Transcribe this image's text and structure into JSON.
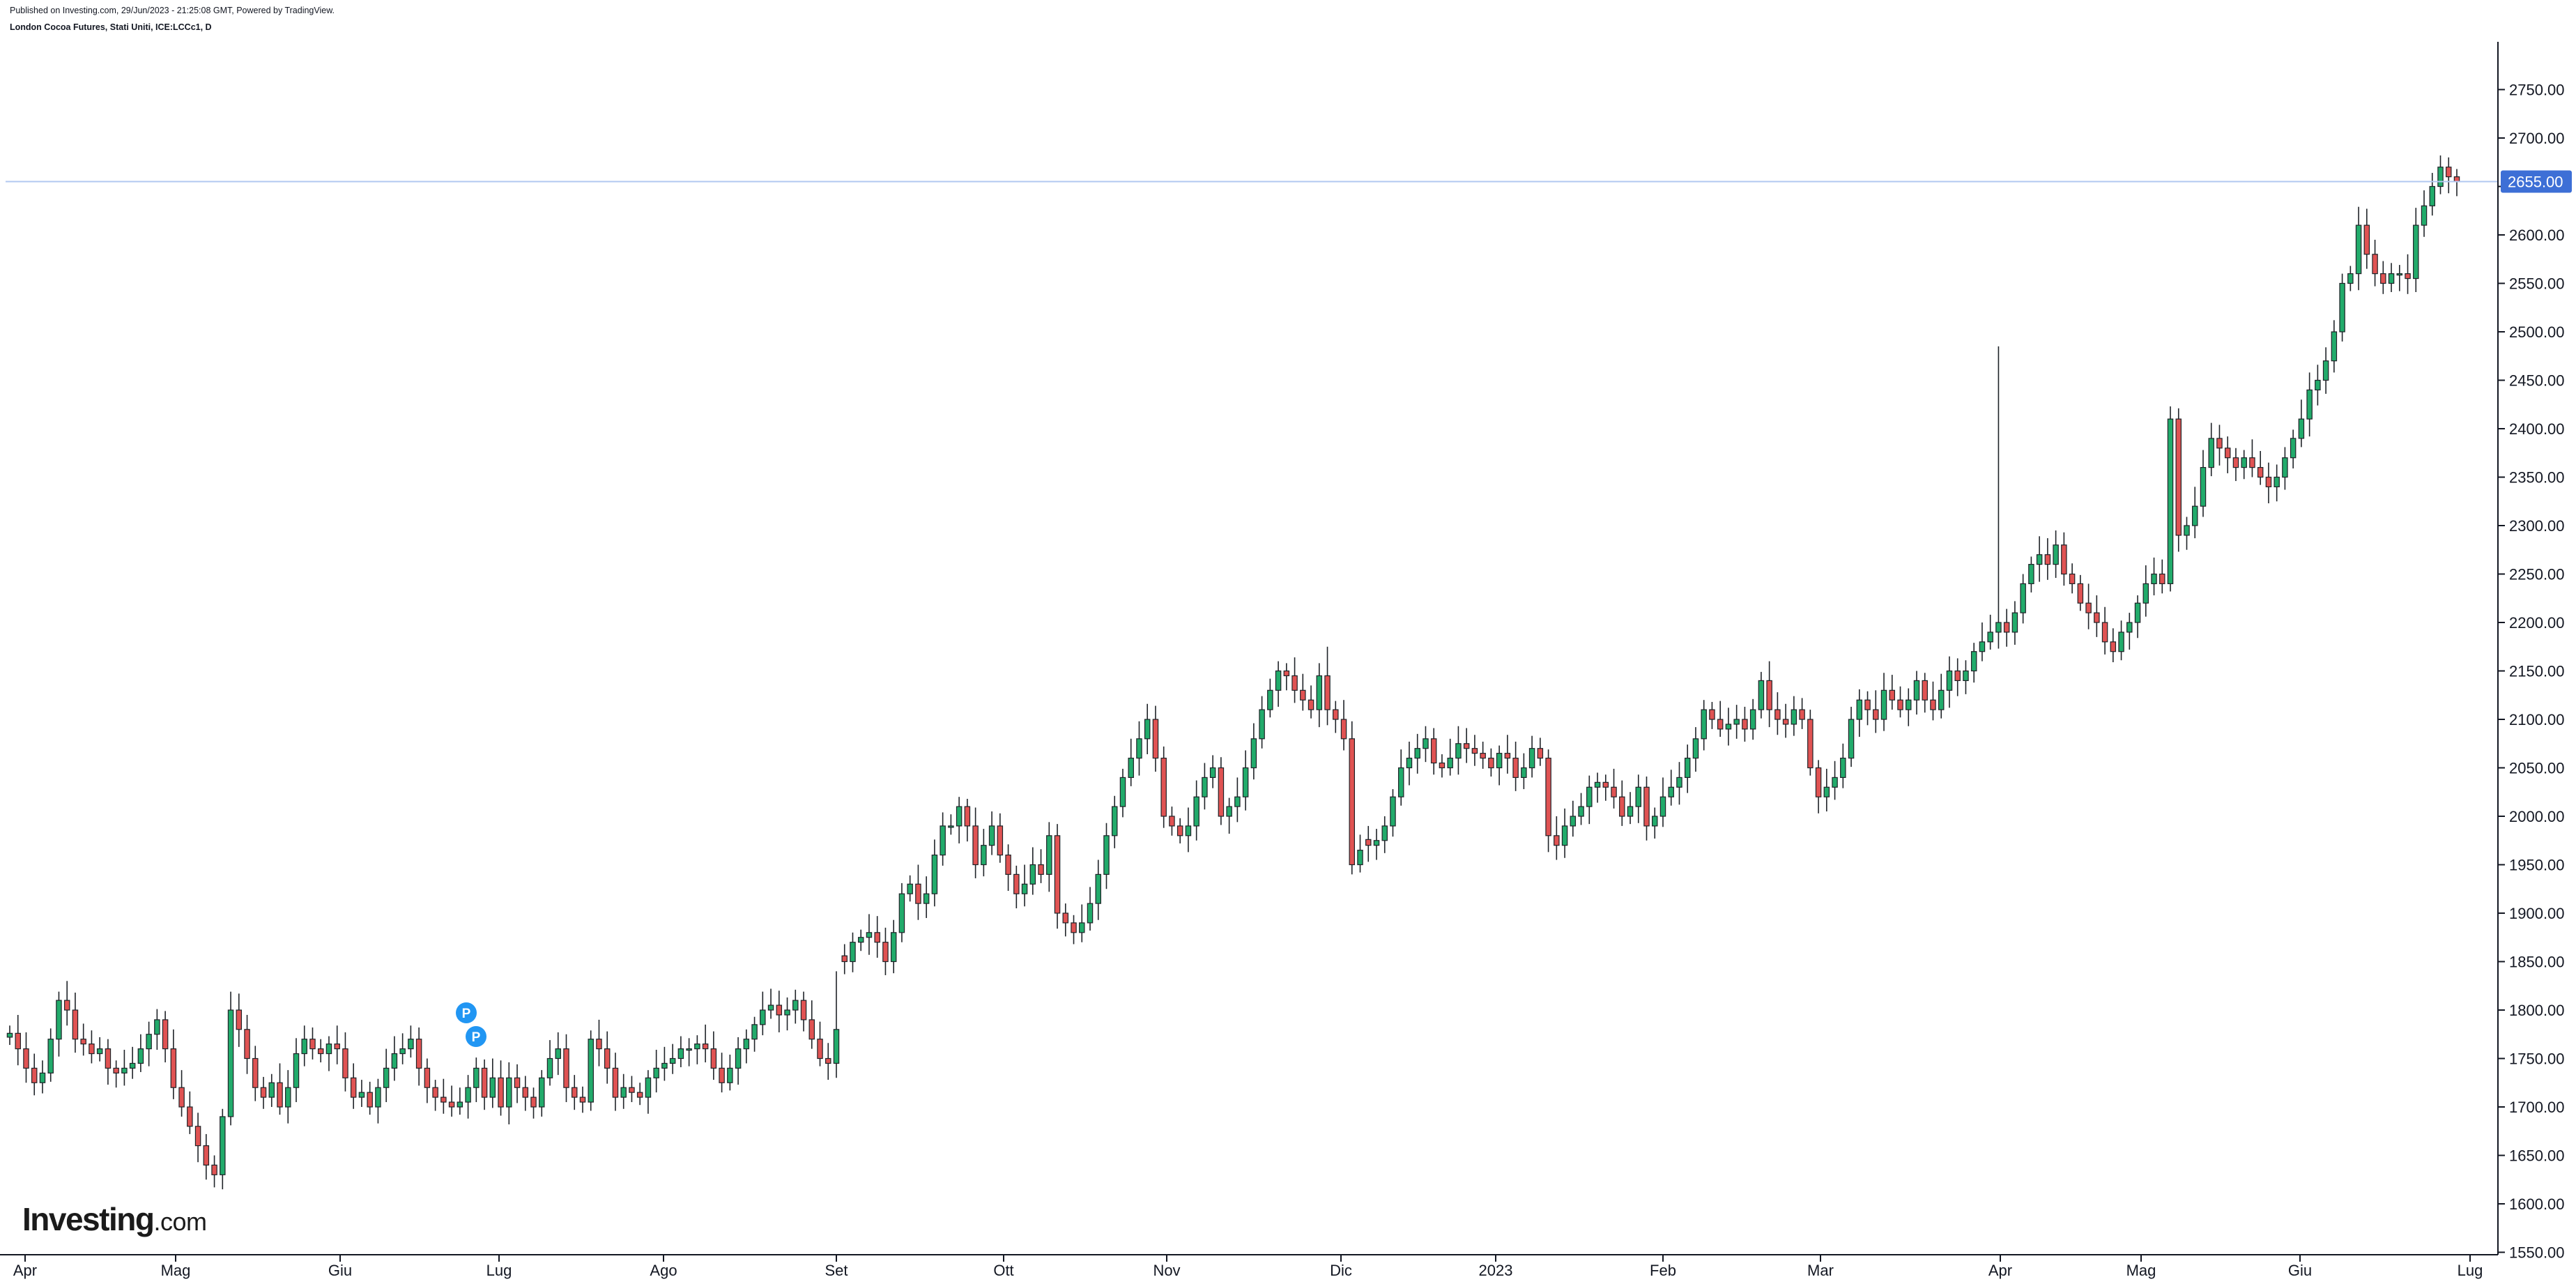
{
  "header": {
    "published": "Published on Investing.com, 29/Jun/2023 - 21:25:08 GMT, Powered by TradingView.",
    "symbol": "London Cocoa Futures, Stati Uniti, ICE:LCCc1, D"
  },
  "logo": {
    "brand": "Investing",
    "suffix": ".com"
  },
  "colors": {
    "up": "#22ab6b",
    "down": "#e05353",
    "wick": "#1f2328",
    "last_line": "#b2c8f0",
    "last_badge": "#3d6fd6",
    "marker": "#2196f3"
  },
  "markers": [
    "P",
    "P"
  ],
  "chart_data": {
    "type": "candlestick",
    "ylim": [
      1550,
      2800
    ],
    "y_ticks": [
      "1550.00",
      "1600.00",
      "1650.00",
      "1700.00",
      "1750.00",
      "1800.00",
      "1850.00",
      "1900.00",
      "1950.00",
      "2000.00",
      "2050.00",
      "2100.00",
      "2150.00",
      "2200.00",
      "2250.00",
      "2300.00",
      "2350.00",
      "2400.00",
      "2450.00",
      "2500.00",
      "2550.00",
      "2600.00",
      "2650.00",
      "2700.00",
      "2750.00"
    ],
    "x_ticks": [
      "Apr",
      "Mag",
      "Giu",
      "Lug",
      "Ago",
      "Set",
      "Ott",
      "Nov",
      "Dic",
      "2023",
      "Feb",
      "Mar",
      "Apr",
      "Mag",
      "Giu",
      "Lug"
    ],
    "last_price": 2655.0,
    "last_price_label": "2655.00",
    "grid": false,
    "closes": [
      1776,
      1760,
      1740,
      1725,
      1735,
      1770,
      1810,
      1800,
      1770,
      1765,
      1755,
      1760,
      1740,
      1735,
      1740,
      1745,
      1760,
      1775,
      1790,
      1760,
      1720,
      1700,
      1680,
      1660,
      1640,
      1630,
      1690,
      1800,
      1780,
      1750,
      1720,
      1710,
      1725,
      1700,
      1720,
      1755,
      1770,
      1760,
      1755,
      1765,
      1760,
      1730,
      1710,
      1715,
      1700,
      1720,
      1740,
      1755,
      1760,
      1770,
      1740,
      1720,
      1710,
      1705,
      1700,
      1705,
      1720,
      1740,
      1710,
      1730,
      1700,
      1730,
      1720,
      1710,
      1700,
      1730,
      1750,
      1760,
      1720,
      1710,
      1705,
      1770,
      1760,
      1740,
      1710,
      1720,
      1715,
      1710,
      1730,
      1740,
      1745,
      1750,
      1760,
      1760,
      1765,
      1760,
      1740,
      1725,
      1740,
      1760,
      1770,
      1785,
      1800,
      1805,
      1795,
      1800,
      1810,
      1790,
      1770,
      1750,
      1745,
      1780,
      1850,
      1870,
      1875,
      1880,
      1870,
      1850,
      1880,
      1920,
      1930,
      1910,
      1920,
      1960,
      1990,
      1990,
      2010,
      1990,
      1950,
      1970,
      1990,
      1960,
      1940,
      1920,
      1930,
      1950,
      1940,
      1980,
      1900,
      1890,
      1880,
      1890,
      1910,
      1940,
      1980,
      2010,
      2040,
      2060,
      2080,
      2100,
      2060,
      2000,
      1990,
      1980,
      1990,
      2020,
      2040,
      2050,
      2000,
      2010,
      2020,
      2050,
      2080,
      2110,
      2130,
      2150,
      2145,
      2130,
      2120,
      2110,
      2145,
      2110,
      2100,
      2080,
      1950,
      1965,
      1970,
      1975,
      1990,
      2020,
      2050,
      2060,
      2070,
      2080,
      2055,
      2050,
      2060,
      2075,
      2070,
      2065,
      2060,
      2050,
      2065,
      2060,
      2040,
      2050,
      2070,
      2060,
      1980,
      1970,
      1990,
      2000,
      2010,
      2030,
      2035,
      2030,
      2020,
      2000,
      2010,
      2030,
      1990,
      2000,
      2020,
      2030,
      2040,
      2060,
      2080,
      2110,
      2100,
      2090,
      2095,
      2100,
      2090,
      2110,
      2140,
      2110,
      2100,
      2095,
      2110,
      2100,
      2050,
      2020,
      2030,
      2040,
      2060,
      2100,
      2120,
      2110,
      2100,
      2130,
      2120,
      2110,
      2120,
      2140,
      2120,
      2110,
      2130,
      2150,
      2140,
      2150,
      2170,
      2180,
      2190,
      2200,
      2190,
      2210,
      2240,
      2260,
      2270,
      2260,
      2280,
      2250,
      2240,
      2220,
      2210,
      2200,
      2180,
      2170,
      2190,
      2200,
      2220,
      2240,
      2250,
      2240,
      2410,
      2290,
      2300,
      2320,
      2360,
      2390,
      2380,
      2370,
      2360,
      2370,
      2360,
      2350,
      2340,
      2350,
      2370,
      2390,
      2410,
      2440,
      2450,
      2470,
      2500,
      2550,
      2560,
      2610,
      2580,
      2560,
      2550,
      2560,
      2560,
      2555,
      2610,
      2630,
      2650,
      2670,
      2660,
      2655
    ],
    "gap_after_index": [
      101,
      165
    ]
  }
}
